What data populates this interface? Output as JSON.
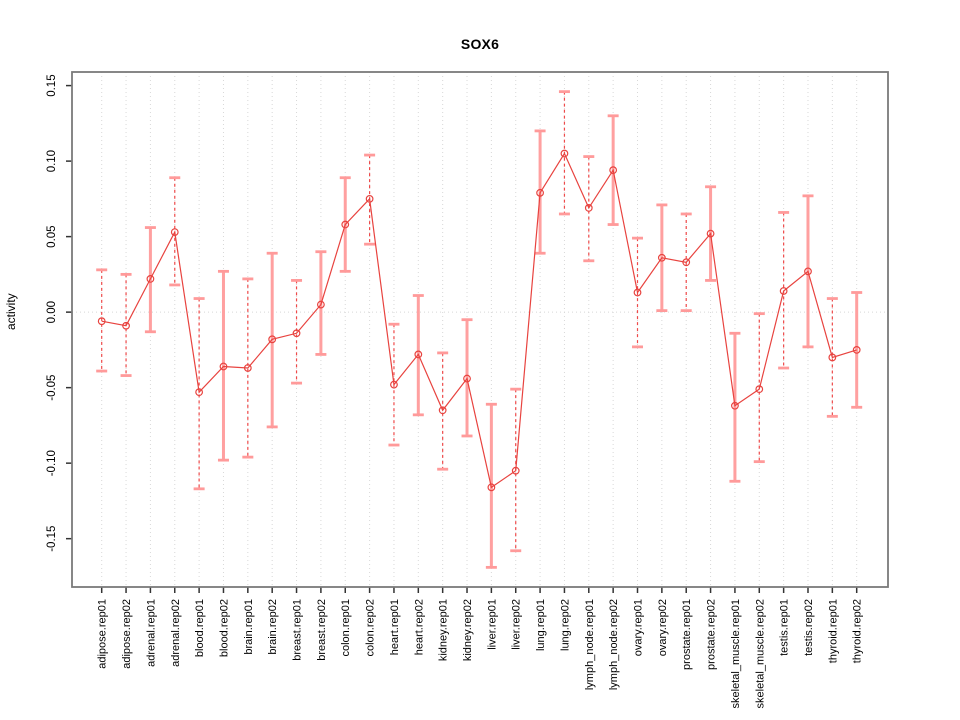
{
  "page": {
    "background": "#ffffff"
  },
  "chart_data": {
    "type": "line",
    "title": "SOX6",
    "ylabel": "activity",
    "xlabel": "",
    "legend": "none",
    "grid": "vertical dotted gridlines at each category; dotted horizontal line at 0",
    "categories": [
      "adipose.rep01",
      "adipose.rep02",
      "adrenal.rep01",
      "adrenal.rep02",
      "blood.rep01",
      "blood.rep02",
      "brain.rep01",
      "brain.rep02",
      "breast.rep01",
      "breast.rep02",
      "colon.rep01",
      "colon.rep02",
      "heart.rep01",
      "heart.rep02",
      "kidney.rep01",
      "kidney.rep02",
      "liver.rep01",
      "liver.rep02",
      "lung.rep01",
      "lung.rep02",
      "lymph_node.rep01",
      "lymph_node.rep02",
      "ovary.rep01",
      "ovary.rep02",
      "prostate.rep01",
      "prostate.rep02",
      "skeletal_muscle.rep01",
      "skeletal_muscle.rep02",
      "testis.rep01",
      "testis.rep02",
      "thyroid.rep01",
      "thyroid.rep02"
    ],
    "series": [
      {
        "name": "activity",
        "values": [
          -0.006,
          -0.009,
          0.022,
          0.053,
          -0.053,
          -0.036,
          -0.037,
          -0.018,
          -0.014,
          0.005,
          0.058,
          0.075,
          -0.048,
          -0.028,
          -0.065,
          -0.044,
          -0.116,
          -0.105,
          0.079,
          0.105,
          0.069,
          0.094,
          0.013,
          0.036,
          0.033,
          0.052,
          -0.062,
          -0.051,
          0.014,
          0.027,
          -0.03,
          -0.025
        ],
        "error_low": [
          -0.039,
          -0.042,
          -0.013,
          0.018,
          -0.117,
          -0.098,
          -0.096,
          -0.076,
          -0.047,
          -0.028,
          0.027,
          0.045,
          -0.088,
          -0.068,
          -0.104,
          -0.082,
          -0.169,
          -0.158,
          0.039,
          0.065,
          0.034,
          0.058,
          -0.023,
          0.001,
          0.001,
          0.021,
          -0.112,
          -0.099,
          -0.037,
          -0.023,
          -0.069,
          -0.063
        ],
        "error_high": [
          0.028,
          0.025,
          0.056,
          0.089,
          0.009,
          0.027,
          0.022,
          0.039,
          0.021,
          0.04,
          0.089,
          0.104,
          -0.008,
          0.011,
          -0.027,
          -0.005,
          -0.061,
          -0.051,
          0.12,
          0.146,
          0.103,
          0.13,
          0.049,
          0.071,
          0.065,
          0.083,
          -0.014,
          -0.001,
          0.066,
          0.077,
          0.009,
          0.013
        ]
      }
    ],
    "thick_stem_indices": [
      2,
      5,
      7,
      9,
      10,
      13,
      15,
      16,
      18,
      21,
      23,
      25,
      26,
      29,
      31
    ],
    "yticks": [
      -0.15,
      -0.1,
      -0.05,
      0.0,
      0.05,
      0.1,
      0.15
    ],
    "ytick_labels": [
      "-0.15",
      "-0.10",
      "-0.05",
      "0.00",
      "0.05",
      "0.10",
      "0.15"
    ],
    "ylim": [
      -0.182,
      0.159
    ],
    "colors": {
      "line": "#e8433f",
      "point": "#e8433f",
      "error_cap": "#ff9a9a",
      "error_stem_thick": "#ffa0a0",
      "error_stem_dashed": "#ef4a4a",
      "gridline": "#d8d8d8",
      "zero_line": "#d8d8d8",
      "frame": "#7a7a7a",
      "tick": "#333333",
      "text": "#000000"
    }
  }
}
